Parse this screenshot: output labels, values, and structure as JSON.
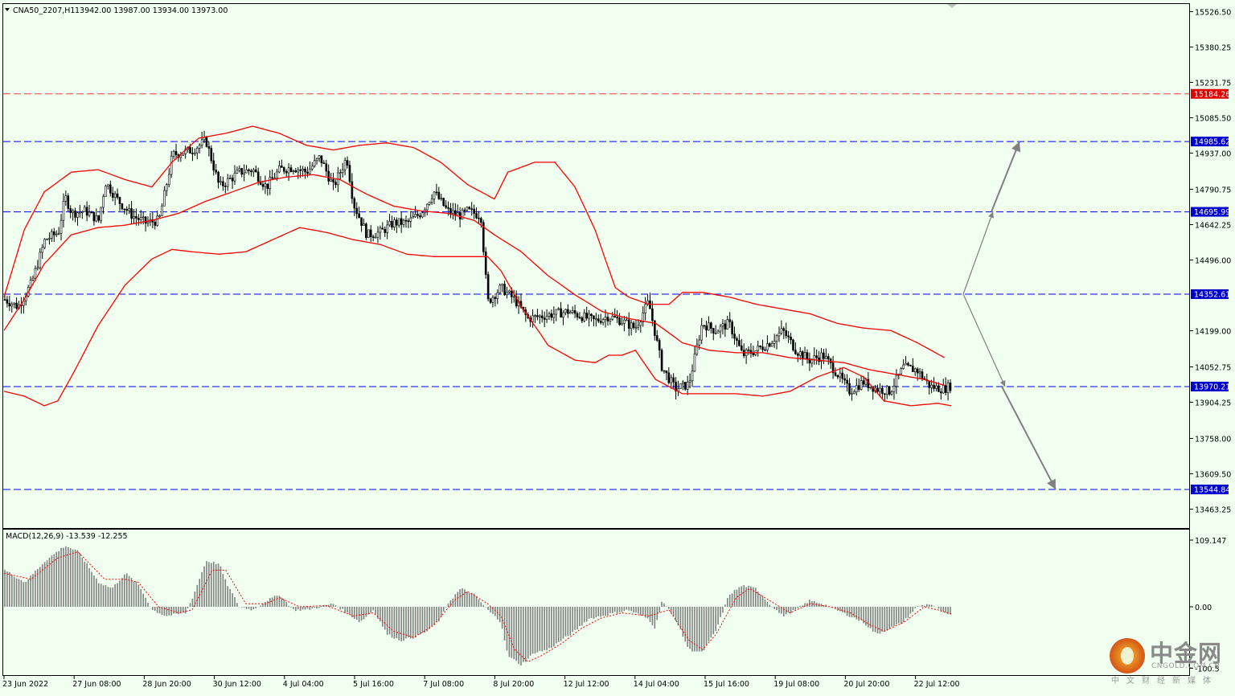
{
  "header": {
    "symbol_label": "CNA50_2207,H1",
    "ohlc": "13942.00 13987.00 13934.00 13973.00"
  },
  "colors": {
    "background": "#f0fff0",
    "bollinger": "#ff0000",
    "level_line_blue": "#0000ff",
    "level_line_red": "#ff4040",
    "tag_blue": "#0000cd",
    "tag_red": "#e00000",
    "candle": "#000000",
    "histogram": "#808080",
    "signal": "#ff0000",
    "arrow": "#808080"
  },
  "chart_data": [
    {
      "type": "candlestick",
      "title": "CNA50_2207,H1",
      "x_tick_labels": [
        "23 Jun 2022",
        "27 Jun 08:00",
        "28 Jun 20:00",
        "30 Jun 12:00",
        "4 Jul 04:00",
        "5 Jul 16:00",
        "7 Jul 08:00",
        "8 Jul 20:00",
        "12 Jul 12:00",
        "14 Jul 04:00",
        "15 Jul 16:00",
        "19 Jul 08:00",
        "20 Jul 20:00",
        "22 Jul 12:00"
      ],
      "y_tick_labels": [
        "15526.50",
        "15380.25",
        "15231.75",
        "15085.50",
        "14937.00",
        "14790.75",
        "14642.25",
        "14496.00",
        "14199.00",
        "14052.75",
        "13904.25",
        "13758.00",
        "13609.50",
        "13463.25"
      ],
      "ylim": [
        13400,
        15560
      ],
      "price_levels": [
        {
          "value": 15184.26,
          "label": "15184.26",
          "style": "red-dashed"
        },
        {
          "value": 14985.62,
          "label": "14985.62",
          "style": "blue-dashed"
        },
        {
          "value": 14695.99,
          "label": "14695.99",
          "style": "blue-dashed"
        },
        {
          "value": 14352.61,
          "label": "14352.61",
          "style": "blue-dashed"
        },
        {
          "value": 13970.21,
          "label": "13970.21",
          "style": "blue-dashed"
        },
        {
          "value": 13544.84,
          "label": "13544.84",
          "style": "blue-dashed"
        }
      ],
      "close_path": [
        [
          0,
          14330
        ],
        [
          2,
          14300
        ],
        [
          4,
          14400
        ],
        [
          6,
          14580
        ],
        [
          8,
          14610
        ],
        [
          9,
          14760
        ],
        [
          10,
          14690
        ],
        [
          12,
          14700
        ],
        [
          14,
          14660
        ],
        [
          15,
          14820
        ],
        [
          17,
          14740
        ],
        [
          19,
          14680
        ],
        [
          21,
          14650
        ],
        [
          23,
          14660
        ],
        [
          25,
          14930
        ],
        [
          28,
          14950
        ],
        [
          30,
          14990
        ],
        [
          32,
          14800
        ],
        [
          35,
          14860
        ],
        [
          37,
          14870
        ],
        [
          39,
          14800
        ],
        [
          41,
          14870
        ],
        [
          43,
          14880
        ],
        [
          45,
          14860
        ],
        [
          47,
          14920
        ],
        [
          49,
          14800
        ],
        [
          51,
          14920
        ],
        [
          52,
          14730
        ],
        [
          54,
          14600
        ],
        [
          56,
          14610
        ],
        [
          58,
          14650
        ],
        [
          60,
          14650
        ],
        [
          62,
          14690
        ],
        [
          64,
          14780
        ],
        [
          66,
          14700
        ],
        [
          68,
          14680
        ],
        [
          69,
          14700
        ],
        [
          71,
          14680
        ],
        [
          72,
          14320
        ],
        [
          74,
          14380
        ],
        [
          76,
          14330
        ],
        [
          78,
          14250
        ],
        [
          80,
          14260
        ],
        [
          82,
          14270
        ],
        [
          84,
          14280
        ],
        [
          86,
          14260
        ],
        [
          88,
          14240
        ],
        [
          90,
          14260
        ],
        [
          92,
          14240
        ],
        [
          94,
          14210
        ],
        [
          96,
          14320
        ],
        [
          98,
          14050
        ],
        [
          100,
          13960
        ],
        [
          102,
          13980
        ],
        [
          104,
          14230
        ],
        [
          106,
          14200
        ],
        [
          108,
          14230
        ],
        [
          110,
          14100
        ],
        [
          112,
          14120
        ],
        [
          114,
          14150
        ],
        [
          116,
          14200
        ],
        [
          118,
          14120
        ],
        [
          120,
          14080
        ],
        [
          122,
          14100
        ],
        [
          124,
          14030
        ],
        [
          126,
          13950
        ],
        [
          128,
          13990
        ],
        [
          130,
          13960
        ],
        [
          132,
          13950
        ],
        [
          134,
          14050
        ],
        [
          136,
          14040
        ],
        [
          138,
          13970
        ],
        [
          140,
          13960
        ],
        [
          141,
          13973
        ]
      ],
      "bollinger_upper": [
        [
          0,
          14340
        ],
        [
          3,
          14620
        ],
        [
          6,
          14780
        ],
        [
          10,
          14860
        ],
        [
          14,
          14870
        ],
        [
          18,
          14830
        ],
        [
          22,
          14800
        ],
        [
          25,
          14900
        ],
        [
          29,
          15000
        ],
        [
          33,
          15020
        ],
        [
          37,
          15050
        ],
        [
          41,
          15020
        ],
        [
          45,
          14970
        ],
        [
          49,
          14950
        ],
        [
          53,
          14970
        ],
        [
          57,
          14980
        ],
        [
          61,
          14960
        ],
        [
          65,
          14900
        ],
        [
          69,
          14810
        ],
        [
          71,
          14780
        ],
        [
          73,
          14750
        ],
        [
          75,
          14860
        ],
        [
          79,
          14900
        ],
        [
          82,
          14900
        ],
        [
          85,
          14800
        ],
        [
          88,
          14620
        ],
        [
          91,
          14380
        ],
        [
          93,
          14340
        ],
        [
          96,
          14310
        ],
        [
          99,
          14310
        ],
        [
          101,
          14360
        ],
        [
          104,
          14360
        ],
        [
          108,
          14340
        ],
        [
          112,
          14310
        ],
        [
          116,
          14290
        ],
        [
          120,
          14270
        ],
        [
          124,
          14230
        ],
        [
          128,
          14210
        ],
        [
          132,
          14200
        ],
        [
          136,
          14150
        ],
        [
          140,
          14090
        ]
      ],
      "bollinger_middle": [
        [
          0,
          14200
        ],
        [
          3,
          14330
        ],
        [
          6,
          14480
        ],
        [
          10,
          14600
        ],
        [
          14,
          14630
        ],
        [
          18,
          14640
        ],
        [
          22,
          14660
        ],
        [
          26,
          14690
        ],
        [
          30,
          14740
        ],
        [
          34,
          14780
        ],
        [
          38,
          14820
        ],
        [
          42,
          14840
        ],
        [
          46,
          14850
        ],
        [
          50,
          14830
        ],
        [
          54,
          14770
        ],
        [
          58,
          14720
        ],
        [
          62,
          14700
        ],
        [
          66,
          14690
        ],
        [
          70,
          14660
        ],
        [
          73,
          14600
        ],
        [
          77,
          14530
        ],
        [
          81,
          14430
        ],
        [
          85,
          14350
        ],
        [
          89,
          14280
        ],
        [
          93,
          14250
        ],
        [
          97,
          14230
        ],
        [
          101,
          14150
        ],
        [
          105,
          14120
        ],
        [
          109,
          14110
        ],
        [
          113,
          14110
        ],
        [
          117,
          14090
        ],
        [
          121,
          14080
        ],
        [
          125,
          14070
        ],
        [
          129,
          14040
        ],
        [
          133,
          14020
        ],
        [
          137,
          14000
        ],
        [
          140,
          13975
        ]
      ],
      "bollinger_lower": [
        [
          0,
          13950
        ],
        [
          3,
          13930
        ],
        [
          6,
          13890
        ],
        [
          8,
          13910
        ],
        [
          10,
          14010
        ],
        [
          14,
          14220
        ],
        [
          18,
          14390
        ],
        [
          22,
          14500
        ],
        [
          25,
          14540
        ],
        [
          28,
          14530
        ],
        [
          32,
          14520
        ],
        [
          36,
          14530
        ],
        [
          40,
          14580
        ],
        [
          44,
          14630
        ],
        [
          48,
          14610
        ],
        [
          52,
          14580
        ],
        [
          56,
          14560
        ],
        [
          60,
          14520
        ],
        [
          64,
          14510
        ],
        [
          68,
          14510
        ],
        [
          72,
          14510
        ],
        [
          74,
          14450
        ],
        [
          77,
          14300
        ],
        [
          81,
          14140
        ],
        [
          85,
          14080
        ],
        [
          88,
          14070
        ],
        [
          90,
          14100
        ],
        [
          92,
          14100
        ],
        [
          94,
          14120
        ],
        [
          97,
          14000
        ],
        [
          101,
          13940
        ],
        [
          105,
          13940
        ],
        [
          109,
          13940
        ],
        [
          113,
          13930
        ],
        [
          117,
          13950
        ],
        [
          121,
          14010
        ],
        [
          125,
          14050
        ],
        [
          128,
          14010
        ],
        [
          131,
          13910
        ],
        [
          135,
          13890
        ],
        [
          139,
          13900
        ],
        [
          141,
          13890
        ]
      ],
      "scenario_arrows": [
        {
          "from_value": 14352.61,
          "to_value": 14695.99,
          "to_label": "14695.99"
        },
        {
          "from_value": 14695.99,
          "to_value": 14985.62,
          "to_label": "14985.62"
        },
        {
          "from_value": 14352.61,
          "to_value": 13970.21,
          "to_label": "13970.21"
        },
        {
          "from_value": 13970.21,
          "to_value": 13544.84,
          "to_label": "13544.84"
        }
      ]
    },
    {
      "type": "bar",
      "title": "MACD(12,26,9) -13.539 -12.255",
      "indicator_label": "MACD(12,26,9)",
      "macd_value": -13.539,
      "signal_value": -12.255,
      "y_tick_labels": [
        "109.147",
        "0.00",
        "-100.5"
      ],
      "ylim": [
        -109,
        110
      ],
      "histogram_path": [
        [
          0,
          60
        ],
        [
          3,
          40
        ],
        [
          6,
          75
        ],
        [
          9,
          100
        ],
        [
          11,
          90
        ],
        [
          14,
          40
        ],
        [
          16,
          30
        ],
        [
          18,
          55
        ],
        [
          20,
          35
        ],
        [
          22,
          -5
        ],
        [
          24,
          -15
        ],
        [
          27,
          -10
        ],
        [
          28,
          15
        ],
        [
          30,
          75
        ],
        [
          32,
          70
        ],
        [
          33,
          40
        ],
        [
          35,
          0
        ],
        [
          37,
          -5
        ],
        [
          39,
          10
        ],
        [
          41,
          20
        ],
        [
          43,
          -5
        ],
        [
          45,
          -5
        ],
        [
          47,
          0
        ],
        [
          49,
          5
        ],
        [
          51,
          -10
        ],
        [
          53,
          -25
        ],
        [
          55,
          -5
        ],
        [
          57,
          -45
        ],
        [
          59,
          -55
        ],
        [
          61,
          -50
        ],
        [
          63,
          -40
        ],
        [
          65,
          -20
        ],
        [
          66,
          5
        ],
        [
          68,
          30
        ],
        [
          70,
          20
        ],
        [
          72,
          -5
        ],
        [
          74,
          -25
        ],
        [
          75,
          -80
        ],
        [
          77,
          -95
        ],
        [
          79,
          -75
        ],
        [
          81,
          -70
        ],
        [
          83,
          -55
        ],
        [
          85,
          -40
        ],
        [
          87,
          -20
        ],
        [
          89,
          -15
        ],
        [
          91,
          -10
        ],
        [
          93,
          -5
        ],
        [
          96,
          -20
        ],
        [
          97,
          -35
        ],
        [
          98,
          10
        ],
        [
          100,
          -20
        ],
        [
          102,
          -70
        ],
        [
          104,
          -75
        ],
        [
          106,
          -40
        ],
        [
          108,
          20
        ],
        [
          110,
          35
        ],
        [
          112,
          30
        ],
        [
          114,
          5
        ],
        [
          116,
          -15
        ],
        [
          118,
          -5
        ],
        [
          120,
          10
        ],
        [
          122,
          5
        ],
        [
          124,
          -5
        ],
        [
          126,
          -15
        ],
        [
          128,
          -25
        ],
        [
          130,
          -45
        ],
        [
          132,
          -35
        ],
        [
          134,
          -25
        ],
        [
          136,
          0
        ],
        [
          138,
          5
        ],
        [
          140,
          -10
        ],
        [
          141,
          -13
        ]
      ],
      "signal_path": [
        [
          0,
          55
        ],
        [
          4,
          45
        ],
        [
          8,
          80
        ],
        [
          11,
          90
        ],
        [
          15,
          45
        ],
        [
          18,
          45
        ],
        [
          20,
          40
        ],
        [
          23,
          0
        ],
        [
          26,
          -10
        ],
        [
          28,
          -5
        ],
        [
          31,
          60
        ],
        [
          33,
          60
        ],
        [
          36,
          5
        ],
        [
          39,
          5
        ],
        [
          41,
          15
        ],
        [
          44,
          0
        ],
        [
          48,
          2
        ],
        [
          52,
          -15
        ],
        [
          55,
          -10
        ],
        [
          58,
          -40
        ],
        [
          61,
          -50
        ],
        [
          64,
          -30
        ],
        [
          67,
          10
        ],
        [
          69,
          25
        ],
        [
          72,
          5
        ],
        [
          74,
          -15
        ],
        [
          76,
          -70
        ],
        [
          78,
          -90
        ],
        [
          80,
          -80
        ],
        [
          83,
          -60
        ],
        [
          86,
          -35
        ],
        [
          89,
          -18
        ],
        [
          92,
          -10
        ],
        [
          96,
          -15
        ],
        [
          99,
          -5
        ],
        [
          102,
          -55
        ],
        [
          104,
          -70
        ],
        [
          106,
          -45
        ],
        [
          109,
          15
        ],
        [
          111,
          30
        ],
        [
          114,
          10
        ],
        [
          117,
          -10
        ],
        [
          120,
          5
        ],
        [
          123,
          0
        ],
        [
          126,
          -10
        ],
        [
          129,
          -30
        ],
        [
          131,
          -40
        ],
        [
          134,
          -25
        ],
        [
          137,
          0
        ],
        [
          139,
          -5
        ],
        [
          141,
          -12
        ]
      ]
    }
  ],
  "watermark": {
    "brand": "中金网",
    "url": "CNGOLD.COM.CN",
    "subtitle": "中文财经新媒体"
  }
}
